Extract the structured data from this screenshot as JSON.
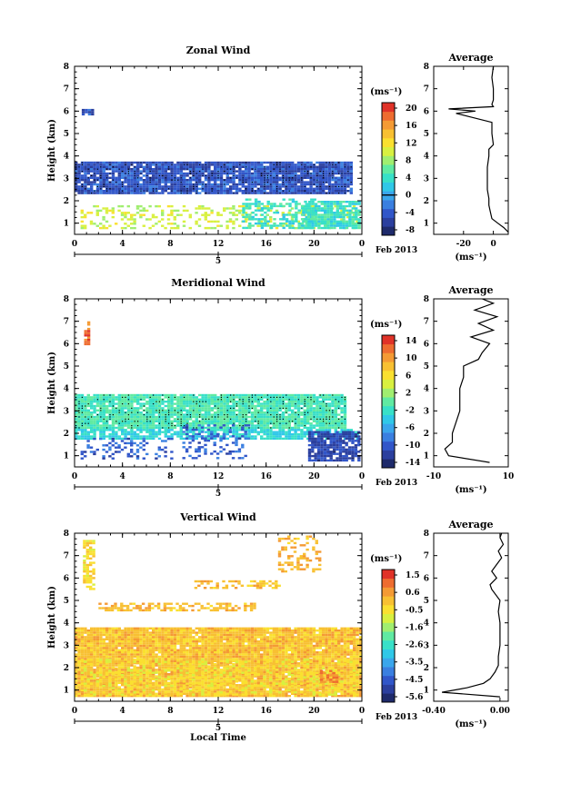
{
  "colors": {
    "rainbow": [
      "#1e2a6b",
      "#2b3f9e",
      "#3156c9",
      "#3a7fe0",
      "#3aa6ec",
      "#30c8e8",
      "#38e0c8",
      "#60eaa2",
      "#a0ee70",
      "#d8f040",
      "#fae030",
      "#f8c032",
      "#f49a34",
      "#ee6c30",
      "#e03228"
    ]
  },
  "month_label": "Feb 2013",
  "xlabel_bottom": "Local Time",
  "unit_label": "(ms⁻¹)",
  "average_title": "Average",
  "chart_data": [
    {
      "type": "heatmap",
      "title": "Zonal Wind",
      "xlabel": "",
      "ylabel": "Height (km)",
      "x_ticks": [
        "0",
        "4",
        "8",
        "12",
        "16",
        "20",
        "0"
      ],
      "day_label": "5",
      "xlim": [
        0,
        24
      ],
      "ylim": [
        0.5,
        8
      ],
      "y_ticks": [
        "1",
        "2",
        "3",
        "4",
        "5",
        "6",
        "7",
        "8"
      ],
      "colorbar": {
        "unit": "(ms⁻¹)",
        "ticks": [
          "20",
          "16",
          "12",
          "8",
          "4",
          "0",
          "-4",
          "-8"
        ],
        "range": [
          -10,
          22
        ],
        "marker": 0
      },
      "regions": [
        {
          "x": [
            0,
            23.0
          ],
          "y": [
            2.3,
            3.75
          ],
          "value": -5,
          "density": 0.93,
          "dots": true
        },
        {
          "x": [
            0.5,
            23.5
          ],
          "y": [
            0.8,
            1.8
          ],
          "value": 10,
          "density": 0.3
        },
        {
          "x": [
            19.0,
            23.8
          ],
          "y": [
            0.8,
            2.0
          ],
          "value": 4,
          "density": 0.85
        },
        {
          "x": [
            14.0,
            20.0
          ],
          "y": [
            0.8,
            2.1
          ],
          "value": 4,
          "density": 0.45
        },
        {
          "x": [
            0.6,
            1.4
          ],
          "y": [
            5.9,
            6.1
          ],
          "value": -5,
          "density": 0.9
        }
      ],
      "average": {
        "xlim": [
          -40,
          10
        ],
        "x_ticks": [
          "-20",
          "0"
        ],
        "xlabel": "(ms⁻¹)",
        "y": [
          0.6,
          0.8,
          1.0,
          1.2,
          1.5,
          1.8,
          2.1,
          2.5,
          3.0,
          3.5,
          4.0,
          4.3,
          4.5,
          5.0,
          5.5,
          5.9,
          6.0,
          6.1,
          6.2,
          6.3,
          6.5,
          7.0,
          7.5,
          8.0
        ],
        "x": [
          10,
          7,
          3,
          -1,
          -2,
          -3,
          -3,
          -4,
          -4,
          -4,
          -3,
          -3,
          0,
          -1,
          -1,
          -25,
          -12,
          -30,
          0,
          -1,
          0,
          0,
          -1,
          0
        ]
      }
    },
    {
      "type": "heatmap",
      "title": "Meridional Wind",
      "xlabel": "",
      "ylabel": "Height (km)",
      "x_ticks": [
        "0",
        "4",
        "8",
        "12",
        "16",
        "20",
        "0"
      ],
      "day_label": "5",
      "xlim": [
        0,
        24
      ],
      "ylim": [
        0.5,
        8
      ],
      "y_ticks": [
        "1",
        "2",
        "3",
        "4",
        "5",
        "6",
        "7",
        "8"
      ],
      "colorbar": {
        "unit": "(ms⁻¹)",
        "ticks": [
          "14",
          "10",
          "6",
          "2",
          "-2",
          "-6",
          "-10",
          "-14"
        ],
        "range": [
          -16,
          16
        ],
        "marker": 0
      },
      "regions": [
        {
          "x": [
            0,
            22.5
          ],
          "y": [
            2.2,
            3.75
          ],
          "value": -1,
          "density": 0.93,
          "dots": true
        },
        {
          "x": [
            0,
            23.5
          ],
          "y": [
            1.8,
            2.2
          ],
          "value": -3,
          "density": 0.8
        },
        {
          "x": [
            0.5,
            8.0
          ],
          "y": [
            0.9,
            1.8
          ],
          "value": -10,
          "density": 0.25
        },
        {
          "x": [
            9.0,
            14.5
          ],
          "y": [
            0.9,
            2.4
          ],
          "value": -10,
          "density": 0.3
        },
        {
          "x": [
            19.5,
            23.8
          ],
          "y": [
            0.8,
            2.1
          ],
          "value": -12,
          "density": 0.85
        },
        {
          "x": [
            0.8,
            1.2
          ],
          "y": [
            6.0,
            7.0
          ],
          "value": 13,
          "density": 0.8
        }
      ],
      "average": {
        "xlim": [
          -10,
          10
        ],
        "x_ticks": [
          "-10",
          "10"
        ],
        "xlabel": "(ms⁻¹)",
        "y": [
          0.7,
          1.0,
          1.3,
          1.6,
          2.0,
          2.5,
          3.0,
          3.5,
          4.0,
          4.5,
          5.0,
          5.3,
          5.6,
          6.0,
          6.3,
          6.6,
          6.9,
          7.2,
          7.5,
          7.8,
          8.0
        ],
        "x": [
          5,
          -6,
          -7,
          -5,
          -5,
          -4,
          -3,
          -3,
          -3,
          -2,
          -2,
          2,
          3,
          5,
          0,
          6,
          2,
          7,
          1,
          6,
          3
        ]
      }
    },
    {
      "type": "heatmap",
      "title": "Vertical Wind",
      "xlabel": "Local Time",
      "ylabel": "Height (km)",
      "x_ticks": [
        "0",
        "4",
        "8",
        "12",
        "16",
        "20",
        "0"
      ],
      "day_label": "5",
      "xlim": [
        0,
        24
      ],
      "ylim": [
        0.5,
        8
      ],
      "y_ticks": [
        "1",
        "2",
        "3",
        "4",
        "5",
        "6",
        "7",
        "8"
      ],
      "colorbar": {
        "unit": "(ms⁻¹)",
        "ticks": [
          "1.5",
          "0.6",
          "-0.5",
          "-1.6",
          "-2.6",
          "-3.5",
          "-4.5",
          "-5.6"
        ],
        "range": [
          -6,
          2
        ],
        "marker": null
      },
      "regions": [
        {
          "x": [
            0,
            24
          ],
          "y": [
            0.7,
            3.8
          ],
          "value": 0.1,
          "density": 0.97
        },
        {
          "x": [
            0.5,
            23.5
          ],
          "y": [
            0.8,
            2.4
          ],
          "value": -0.5,
          "density": 0.35
        },
        {
          "x": [
            2.0,
            15.0
          ],
          "y": [
            4.6,
            4.9
          ],
          "value": 0.2,
          "density": 0.5
        },
        {
          "x": [
            10.0,
            17.0
          ],
          "y": [
            5.6,
            5.9
          ],
          "value": 0.2,
          "density": 0.4
        },
        {
          "x": [
            0.7,
            1.6
          ],
          "y": [
            5.5,
            7.7
          ],
          "value": -0.4,
          "density": 0.7
        },
        {
          "x": [
            17.0,
            20.5
          ],
          "y": [
            6.3,
            7.9
          ],
          "value": 0.3,
          "density": 0.3
        },
        {
          "x": [
            20.5,
            22.0
          ],
          "y": [
            1.4,
            1.9
          ],
          "value": 0.9,
          "density": 0.6
        }
      ],
      "average": {
        "xlim": [
          -0.4,
          0.05
        ],
        "x_ticks": [
          "-0.40",
          "0.00"
        ],
        "xlabel": "(ms⁻¹)",
        "y": [
          0.7,
          0.9,
          1.1,
          1.3,
          1.5,
          1.8,
          2.1,
          2.5,
          3.0,
          3.5,
          4.0,
          4.5,
          5.0,
          5.5,
          5.7,
          6.0,
          6.3,
          6.6,
          6.9,
          7.2,
          7.5,
          7.8,
          8.0
        ],
        "x": [
          0,
          -0.35,
          -0.2,
          -0.1,
          -0.06,
          -0.03,
          -0.01,
          -0.01,
          0,
          0,
          0,
          -0.01,
          0,
          -0.05,
          -0.06,
          -0.02,
          -0.05,
          -0.02,
          0.01,
          -0.01,
          0.02,
          0,
          0.01
        ]
      }
    }
  ]
}
